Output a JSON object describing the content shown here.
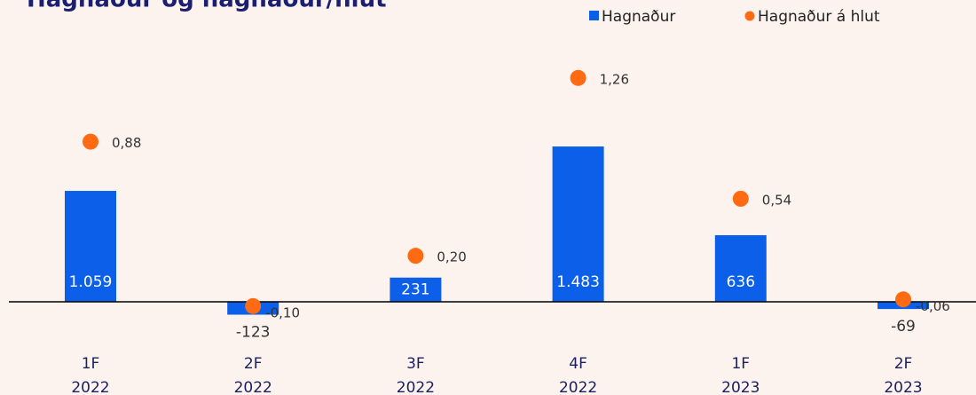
{
  "chart_data": {
    "type": "bar",
    "title": "Hagnaður og hagnaður/hlut",
    "categories": [
      [
        "1F",
        "2022"
      ],
      [
        "2F",
        "2022"
      ],
      [
        "3F",
        "2022"
      ],
      [
        "4F",
        "2022"
      ],
      [
        "1F",
        "2023"
      ],
      [
        "2F",
        "2023"
      ]
    ],
    "series": [
      {
        "name": "Hagnaður",
        "type": "bar",
        "color": "#0b5fe8",
        "values": [
          1059,
          -123,
          231,
          1483,
          636,
          -69
        ],
        "value_labels": [
          "1.059",
          "-123",
          "231",
          "1.483",
          "636",
          "-69"
        ]
      },
      {
        "name": "Hagnaður á hlut",
        "type": "scatter",
        "axis": "y2",
        "color": "#ff6a13",
        "values": [
          0.88,
          -0.1,
          0.2,
          1.26,
          0.54,
          -0.06
        ],
        "value_labels": [
          "0,88",
          "-0,10",
          "0,20",
          "1,26",
          "0,54",
          "-0,06"
        ]
      }
    ],
    "ylim": [
      -339,
      2373
    ],
    "y2lim": [
      -0.286,
      1.407
    ],
    "legend": "top-right"
  }
}
